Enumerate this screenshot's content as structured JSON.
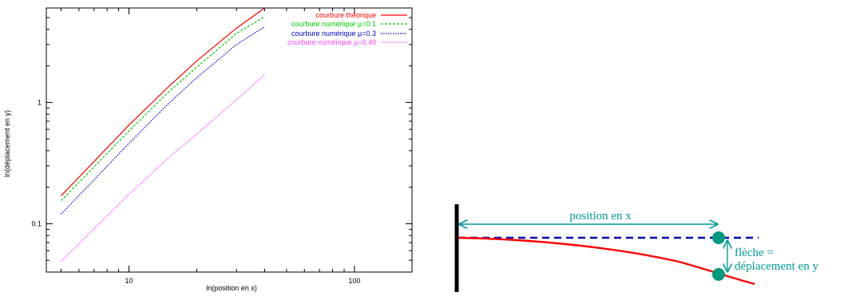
{
  "chart_data": {
    "type": "line",
    "title": "",
    "xlabel": "ln(position en x)",
    "ylabel": "ln(déplacement en y)",
    "xscale": "log",
    "yscale": "log",
    "xlim": [
      4.3,
      180
    ],
    "ylim": [
      0.04,
      6
    ],
    "x_ticks": [
      {
        "value": 10,
        "label": "10"
      },
      {
        "value": 100,
        "label": "100"
      }
    ],
    "y_ticks": [
      {
        "value": 0.1,
        "label": "0.1"
      },
      {
        "value": 1,
        "label": "1"
      }
    ],
    "grid": false,
    "legend": "top-right",
    "series": [
      {
        "name": "courbure théorique",
        "color": "#ff0000",
        "style": "solid",
        "x": [
          5,
          10,
          15,
          20,
          30,
          40
        ],
        "y": [
          0.17,
          0.65,
          1.35,
          2.2,
          4.1,
          6.0
        ]
      },
      {
        "name": "courbure numérique µ=0.1",
        "color": "#00cc00",
        "style": "dashed",
        "x": [
          5,
          10,
          15,
          20,
          30,
          40
        ],
        "y": [
          0.155,
          0.58,
          1.22,
          1.95,
          3.7,
          5.1
        ]
      },
      {
        "name": "courbure numérique µ=0.3",
        "color": "#0000cc",
        "style": "dotted",
        "x": [
          5,
          10,
          15,
          20,
          30,
          40
        ],
        "y": [
          0.12,
          0.46,
          0.98,
          1.6,
          3.0,
          4.2
        ]
      },
      {
        "name": "courbure numérique µ=0.49",
        "color": "#ff44ff",
        "style": "dotted",
        "x": [
          5,
          10,
          15,
          20,
          30,
          40
        ],
        "y": [
          0.049,
          0.175,
          0.35,
          0.55,
          1.05,
          1.7
        ]
      }
    ]
  },
  "diagram": {
    "position_label": "position en x",
    "fleche_label_1": "flèche =",
    "fleche_label_2": "déplacement en y",
    "colors": {
      "arrow": "#009999",
      "dashed_line": "#0000aa",
      "curve": "#ff0000",
      "points": "#009980",
      "wall": "#000000"
    }
  }
}
